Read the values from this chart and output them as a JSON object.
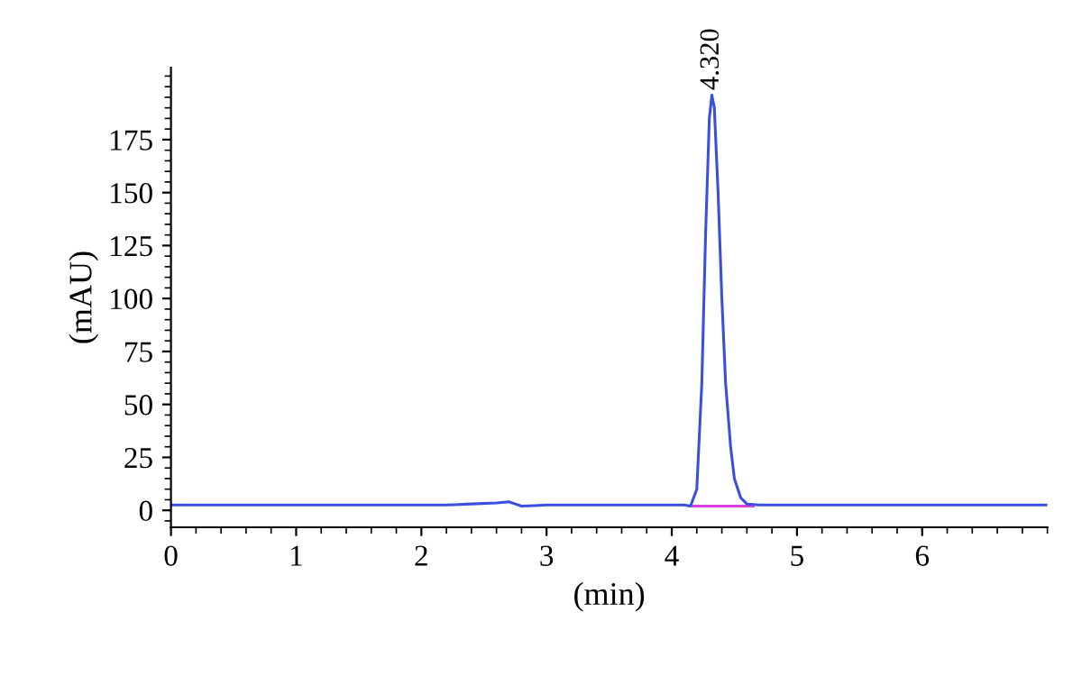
{
  "chart_data": {
    "type": "line",
    "xlabel": "(min)",
    "ylabel": "(mAU)",
    "xlim": [
      0,
      7
    ],
    "ylim": [
      -8,
      209
    ],
    "xticks": [
      0,
      1,
      2,
      3,
      4,
      5,
      6
    ],
    "yticks": [
      0,
      25,
      50,
      75,
      100,
      125,
      150,
      175
    ],
    "grid": false,
    "legend": false,
    "marker": "none",
    "line_style": "solid",
    "series": [
      {
        "color": "#3a4fe0",
        "x": [
          0,
          2.2,
          2.4,
          2.6,
          2.7,
          2.75,
          2.8,
          2.9,
          3.0,
          4.1,
          4.15,
          4.2,
          4.24,
          4.27,
          4.3,
          4.32,
          4.34,
          4.37,
          4.4,
          4.43,
          4.47,
          4.5,
          4.55,
          4.6,
          4.7,
          7
        ],
        "values": [
          2.5,
          2.5,
          3,
          3.5,
          4,
          3,
          2,
          2.2,
          2.5,
          2.5,
          2,
          10,
          60,
          130,
          185,
          196,
          190,
          150,
          100,
          60,
          30,
          15,
          6,
          3,
          2.5,
          2.5
        ]
      },
      {
        "color": "#e040e0",
        "x": [
          4.17,
          4.65
        ],
        "values": [
          2,
          2
        ]
      }
    ],
    "annotations": [
      {
        "text": "4.320",
        "x": 4.32,
        "y": 196
      }
    ]
  }
}
